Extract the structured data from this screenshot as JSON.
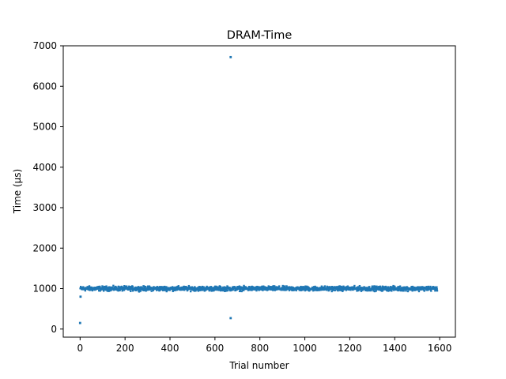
{
  "chart_data": {
    "type": "scatter",
    "title": "DRAM-Time",
    "xlabel": "Trial number",
    "ylabel": "Time (µs)",
    "xlim": [
      -75,
      1670
    ],
    "ylim": [
      -200,
      7000
    ],
    "xticks": [
      0,
      200,
      400,
      600,
      800,
      1000,
      1200,
      1400,
      1600
    ],
    "yticks": [
      0,
      1000,
      2000,
      3000,
      4000,
      5000,
      6000,
      7000
    ],
    "grid": false,
    "marker_color": "#1f77b4",
    "series": [
      {
        "n_trials": 1590,
        "typical_value": 1000,
        "typical_spread": [
          920,
          1080
        ],
        "outliers": [
          {
            "x": 0,
            "y": 150
          },
          {
            "x": 2,
            "y": 800
          },
          {
            "x": 670,
            "y": 6720
          },
          {
            "x": 670,
            "y": 270
          }
        ]
      }
    ]
  }
}
